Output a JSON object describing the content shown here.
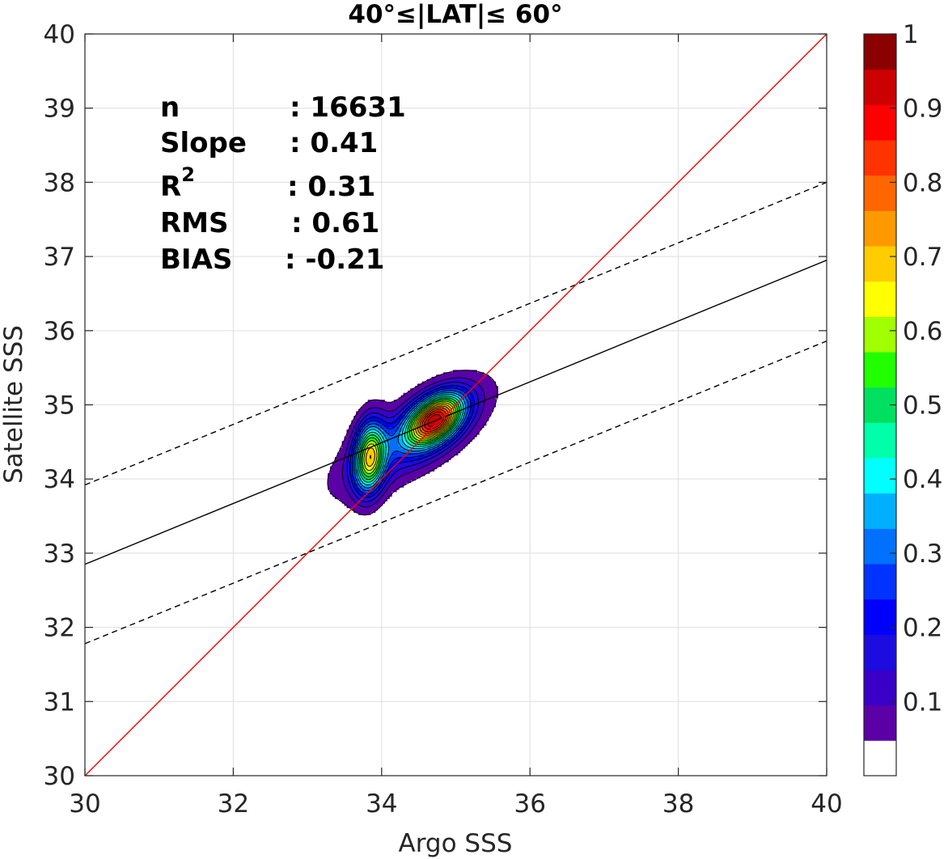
{
  "chart_data": {
    "type": "contour",
    "title": "40°≤|LAT|≤ 60°",
    "xlabel": "Argo SSS",
    "ylabel": "Satellite SSS",
    "xlim": [
      30,
      40
    ],
    "ylim": [
      30,
      40
    ],
    "xticks": [
      "30",
      "32",
      "34",
      "36",
      "38",
      "40"
    ],
    "yticks": [
      "30",
      "31",
      "32",
      "33",
      "34",
      "35",
      "36",
      "37",
      "38",
      "39",
      "40"
    ],
    "grid": true,
    "stats": [
      {
        "name": "n",
        "value": ": 16631"
      },
      {
        "name": "Slope",
        "value": ": 0.41"
      },
      {
        "name": "R",
        "sup": "2",
        "value": ": 0.31"
      },
      {
        "name": "RMS",
        "value": ": 0.61"
      },
      {
        "name": "BIAS",
        "value": ": -0.21"
      }
    ],
    "lines": {
      "one_to_one": {
        "color": "#ff0000",
        "x": [
          30,
          40
        ],
        "y": [
          30,
          40
        ]
      },
      "regression": {
        "color": "#000000",
        "style": "solid",
        "x": [
          30,
          40
        ],
        "y": [
          32.85,
          36.95
        ]
      },
      "upper_bound": {
        "color": "#000000",
        "style": "dashed",
        "x": [
          30,
          40
        ],
        "y": [
          33.92,
          38.0
        ]
      },
      "lower_bound": {
        "color": "#000000",
        "style": "dashed",
        "x": [
          30,
          40
        ],
        "y": [
          31.78,
          35.86
        ]
      }
    },
    "density_peaks": [
      {
        "x": 34.72,
        "y": 34.8,
        "peak": 1.0,
        "sx": 0.26,
        "sy": 0.24,
        "rho": 0.45
      },
      {
        "x": 33.84,
        "y": 34.3,
        "peak": 0.74,
        "sx": 0.14,
        "sy": 0.33,
        "rho": 0.15
      },
      {
        "x": 34.4,
        "y": 34.55,
        "peak": 0.28,
        "sx": 0.65,
        "sy": 0.48,
        "rho": 0.72
      }
    ],
    "contour_levels": [
      0.05,
      0.1,
      0.15,
      0.2,
      0.25,
      0.3,
      0.35,
      0.4,
      0.45,
      0.5,
      0.55,
      0.6,
      0.65,
      0.7,
      0.75,
      0.8,
      0.85,
      0.9,
      0.95
    ],
    "colorbar": {
      "ticks": [
        "0.1",
        "0.2",
        "0.3",
        "0.4",
        "0.5",
        "0.6",
        "0.7",
        "0.8",
        "0.9",
        "1"
      ],
      "range": [
        0,
        1
      ],
      "colors": [
        "#ffffff",
        "#5b00a6",
        "#3a00c8",
        "#1c0ce0",
        "#0000ff",
        "#0033ff",
        "#0070ff",
        "#00b0ff",
        "#00ffff",
        "#00ffaa",
        "#00e060",
        "#22ff00",
        "#a0ff00",
        "#ffff00",
        "#ffcc00",
        "#ff9900",
        "#ff6600",
        "#ff3300",
        "#ff0000",
        "#cc0000",
        "#8b0000"
      ]
    }
  }
}
